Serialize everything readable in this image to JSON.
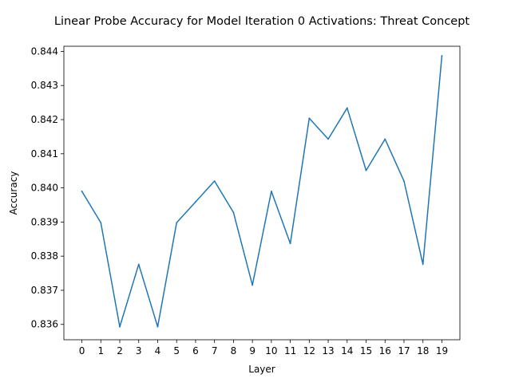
{
  "chart_data": {
    "type": "line",
    "title": "Linear Probe Accuracy for Model Iteration 0 Activations: Threat Concept",
    "xlabel": "Layer",
    "ylabel": "Accuracy",
    "x": [
      0,
      1,
      2,
      3,
      4,
      5,
      6,
      7,
      8,
      9,
      10,
      11,
      12,
      13,
      14,
      15,
      16,
      17,
      18,
      19
    ],
    "xticks": [
      "0",
      "1",
      "2",
      "3",
      "4",
      "5",
      "6",
      "7",
      "8",
      "9",
      "10",
      "11",
      "12",
      "13",
      "14",
      "15",
      "16",
      "17",
      "18",
      "19"
    ],
    "yticks": [
      "0.836",
      "0.837",
      "0.838",
      "0.839",
      "0.840",
      "0.841",
      "0.842",
      "0.843",
      "0.844"
    ],
    "ytick_values": [
      0.836,
      0.837,
      0.838,
      0.839,
      0.84,
      0.841,
      0.842,
      0.843,
      0.844
    ],
    "series": [
      {
        "values": [
          0.8399,
          0.83898,
          0.83593,
          0.83776,
          0.83593,
          0.83898,
          0.83959,
          0.8402,
          0.83928,
          0.83715,
          0.8399,
          0.83837,
          0.84204,
          0.84143,
          0.84234,
          0.84051,
          0.84143,
          0.8402,
          0.83776,
          0.84387
        ],
        "color": "#1f77b4"
      }
    ],
    "xlim": [
      -0.95,
      19.95
    ],
    "ylim": [
      0.83555,
      0.84415
    ],
    "grid": false
  }
}
